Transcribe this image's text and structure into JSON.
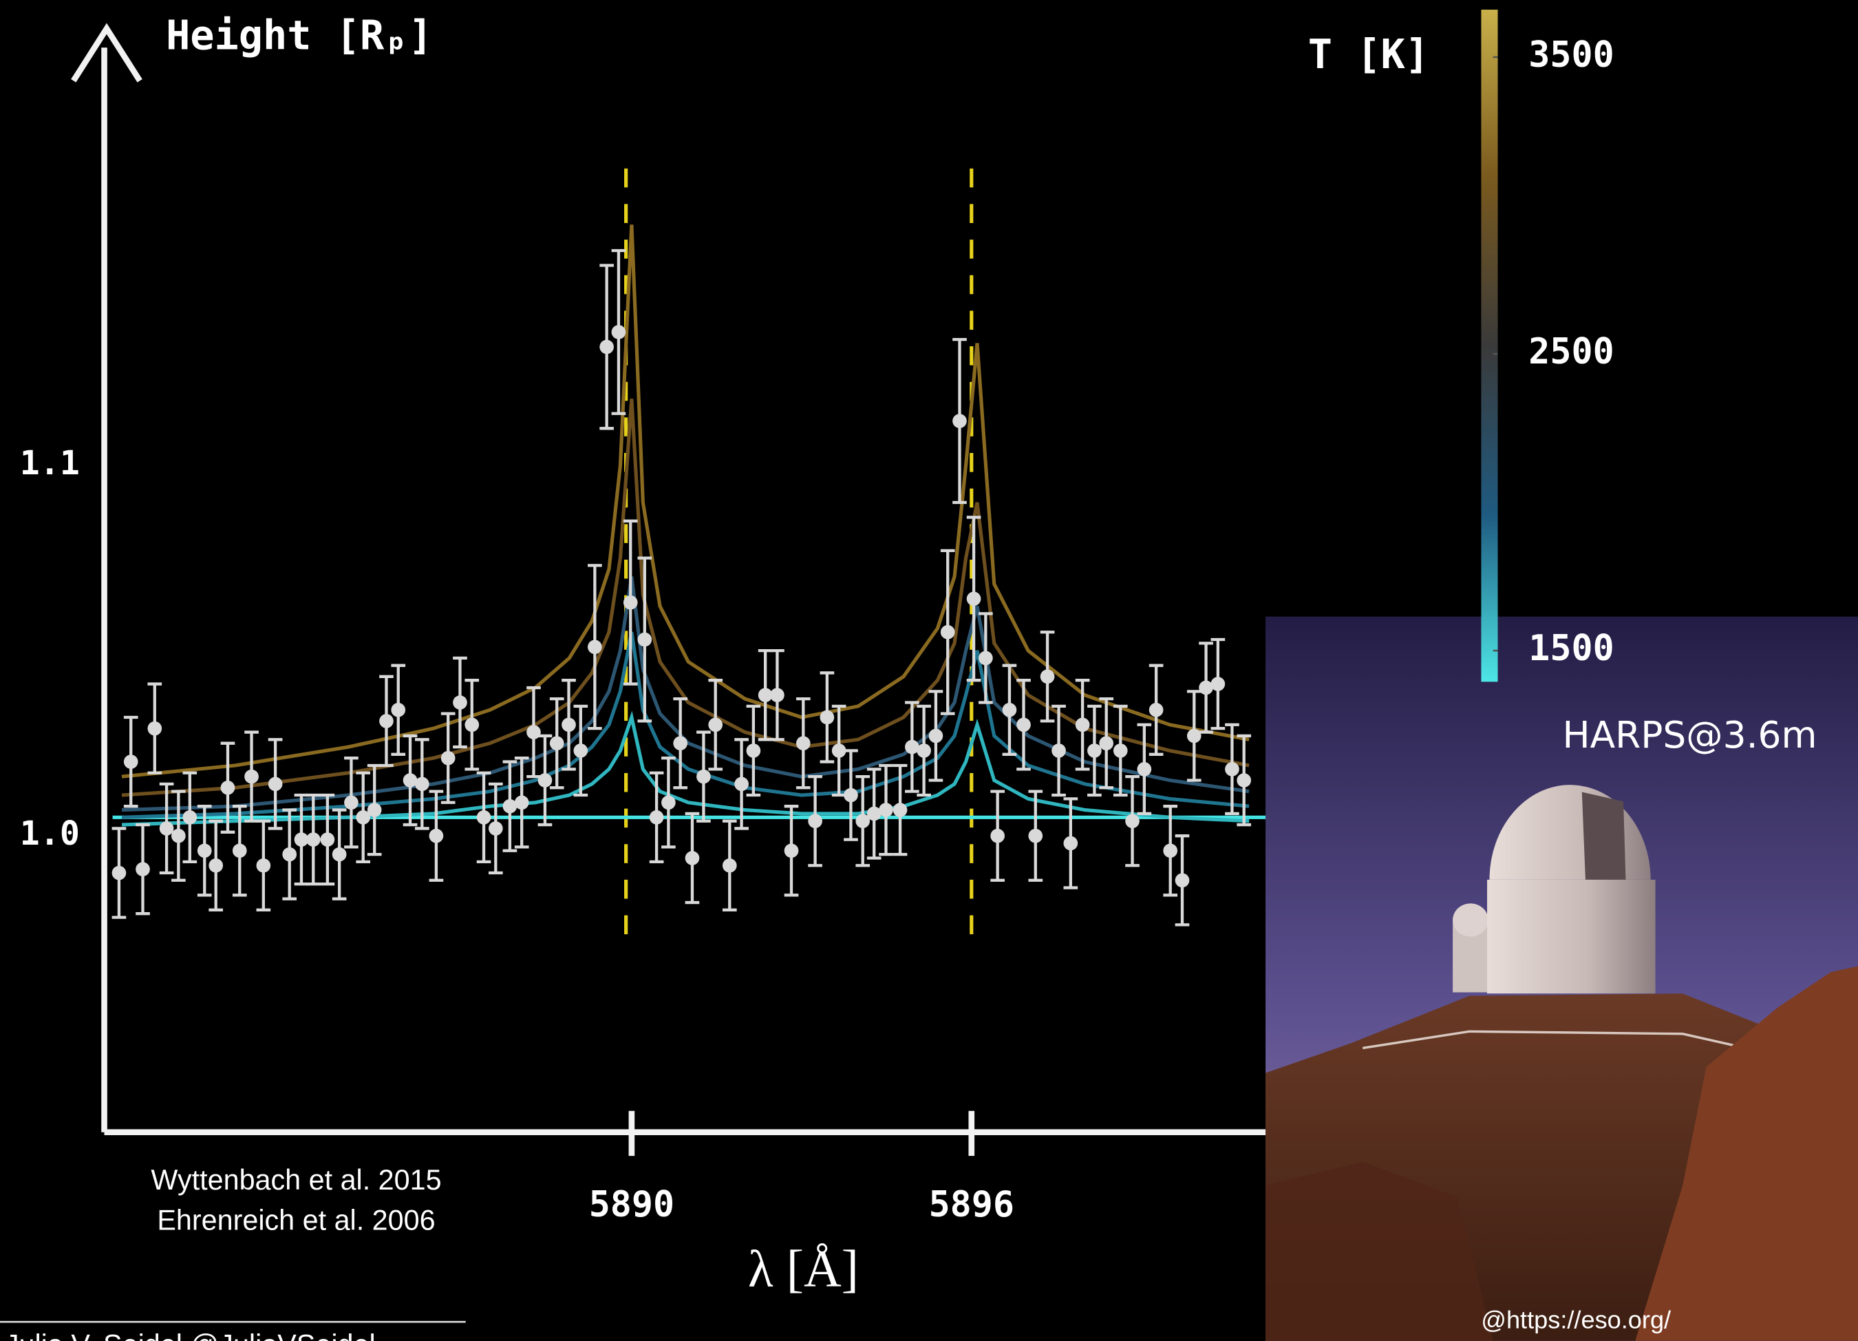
{
  "chart_data": {
    "type": "scatter",
    "y_label": "Height [Rₚ]",
    "x_label": "λ [Å]",
    "xlim": [
      5880.69,
      5901.86
    ],
    "ylim": [
      0.92,
      1.216
    ],
    "xticks": [
      5890,
      5896
    ],
    "yticks": [
      {
        "value": 1,
        "label": "1.0"
      },
      1.1
    ],
    "points": {
      "color": "#d9d9d9",
      "x": [
        5880.95,
        5881.16,
        5881.37,
        5881.58,
        5881.79,
        5882.0,
        5882.2,
        5882.46,
        5882.66,
        5882.87,
        5883.08,
        5883.29,
        5883.5,
        5883.71,
        5883.96,
        5884.17,
        5884.38,
        5884.63,
        5884.84,
        5885.05,
        5885.26,
        5885.46,
        5885.67,
        5885.88,
        5886.09,
        5886.3,
        5886.55,
        5886.76,
        5886.97,
        5887.18,
        5887.39,
        5887.6,
        5887.85,
        5888.06,
        5888.27,
        5888.47,
        5888.68,
        5888.89,
        5889.1,
        5889.35,
        5889.56,
        5889.77,
        5889.98,
        5890.23,
        5890.44,
        5890.65,
        5890.86,
        5891.07,
        5891.27,
        5891.48,
        5891.73,
        5891.94,
        5892.15,
        5892.36,
        5892.57,
        5892.82,
        5893.03,
        5893.24,
        5893.45,
        5893.66,
        5893.87,
        5894.08,
        5894.28,
        5894.49,
        5894.74,
        5894.95,
        5895.16,
        5895.37,
        5895.58,
        5895.79,
        5896.04,
        5896.25,
        5896.46,
        5896.67,
        5896.92,
        5897.13,
        5897.34,
        5897.54,
        5897.75,
        5897.96,
        5898.17,
        5898.38,
        5898.63,
        5898.84,
        5899.05,
        5899.26,
        5899.51,
        5899.72,
        5899.93,
        5900.14,
        5900.35,
        5900.6,
        5900.81
      ],
      "values": [
        0.99,
        1.02,
        0.991,
        1.029,
        1.002,
        1.0,
        1.005,
        0.996,
        0.992,
        1.013,
        0.996,
        1.016,
        0.992,
        1.014,
        0.995,
        0.999,
        0.999,
        0.999,
        0.995,
        1.009,
        1.005,
        1.007,
        1.031,
        1.034,
        1.015,
        1.014,
        1.0,
        1.021,
        1.036,
        1.03,
        1.005,
        1.002,
        1.008,
        1.009,
        1.028,
        1.015,
        1.025,
        1.03,
        1.023,
        1.051,
        1.132,
        1.136,
        1.063,
        1.053,
        1.005,
        1.009,
        1.025,
        0.994,
        1.016,
        1.03,
        0.992,
        1.014,
        1.023,
        1.038,
        1.038,
        0.996,
        1.025,
        1.004,
        1.032,
        1.023,
        1.011,
        1.004,
        1.006,
        1.007,
        1.007,
        1.024,
        1.023,
        1.027,
        1.055,
        1.112,
        1.064,
        1.048,
        1.0,
        1.034,
        1.03,
        1.0,
        1.043,
        1.023,
        0.998,
        1.03,
        1.023,
        1.025,
        1.023,
        1.004,
        1.018,
        1.034,
        0.996,
        0.988,
        1.027,
        1.04,
        1.041,
        1.018,
        1.015
      ],
      "errors": [
        0.012,
        0.012,
        0.012,
        0.012,
        0.012,
        0.012,
        0.012,
        0.012,
        0.012,
        0.012,
        0.012,
        0.012,
        0.012,
        0.012,
        0.012,
        0.012,
        0.012,
        0.012,
        0.012,
        0.012,
        0.012,
        0.012,
        0.012,
        0.012,
        0.012,
        0.012,
        0.012,
        0.012,
        0.012,
        0.012,
        0.012,
        0.012,
        0.012,
        0.012,
        0.012,
        0.012,
        0.012,
        0.012,
        0.012,
        0.022,
        0.022,
        0.022,
        0.022,
        0.022,
        0.012,
        0.012,
        0.012,
        0.012,
        0.012,
        0.012,
        0.012,
        0.012,
        0.012,
        0.012,
        0.012,
        0.012,
        0.012,
        0.012,
        0.012,
        0.012,
        0.012,
        0.012,
        0.012,
        0.012,
        0.012,
        0.012,
        0.012,
        0.012,
        0.022,
        0.022,
        0.022,
        0.012,
        0.012,
        0.012,
        0.012,
        0.012,
        0.012,
        0.012,
        0.012,
        0.012,
        0.012,
        0.012,
        0.012,
        0.012,
        0.012,
        0.012,
        0.012,
        0.012,
        0.012,
        0.012,
        0.012,
        0.012,
        0.012
      ]
    },
    "models": {
      "x": [
        5881,
        5883,
        5885,
        5886.5,
        5887.5,
        5888.3,
        5888.9,
        5889.3,
        5889.6,
        5889.8,
        5890.0,
        5890.2,
        5890.5,
        5891,
        5892,
        5893,
        5894,
        5894.8,
        5895.4,
        5895.7,
        5895.9,
        5896.1,
        5896.4,
        5897,
        5898,
        5899.5,
        5900.9
      ],
      "series": [
        {
          "color": "#8a6a20",
          "values": [
            1.016,
            1.019,
            1.024,
            1.029,
            1.034,
            1.04,
            1.048,
            1.058,
            1.072,
            1.1,
            1.165,
            1.09,
            1.062,
            1.047,
            1.037,
            1.032,
            1.035,
            1.043,
            1.056,
            1.07,
            1.1,
            1.133,
            1.068,
            1.05,
            1.038,
            1.03,
            1.026
          ]
        },
        {
          "color": "#6e4f1e",
          "values": [
            1.011,
            1.013,
            1.017,
            1.021,
            1.025,
            1.03,
            1.036,
            1.044,
            1.055,
            1.075,
            1.118,
            1.065,
            1.047,
            1.036,
            1.028,
            1.024,
            1.026,
            1.032,
            1.042,
            1.052,
            1.075,
            1.09,
            1.052,
            1.038,
            1.029,
            1.023,
            1.019
          ]
        },
        {
          "color": "#2c5672",
          "values": [
            1.007,
            1.008,
            1.011,
            1.014,
            1.017,
            1.021,
            1.025,
            1.031,
            1.039,
            1.05,
            1.07,
            1.045,
            1.033,
            1.025,
            1.019,
            1.016,
            1.018,
            1.022,
            1.029,
            1.036,
            1.05,
            1.062,
            1.036,
            1.027,
            1.02,
            1.015,
            1.012
          ]
        },
        {
          "color": "#1f7590",
          "values": [
            1.005,
            1.006,
            1.008,
            1.01,
            1.012,
            1.015,
            1.019,
            1.024,
            1.03,
            1.039,
            1.055,
            1.034,
            1.024,
            1.018,
            1.013,
            1.011,
            1.012,
            1.016,
            1.021,
            1.027,
            1.038,
            1.05,
            1.027,
            1.019,
            1.014,
            1.01,
            1.008
          ]
        },
        {
          "color": "#2fb6bf",
          "values": [
            1.003,
            1.004,
            1.005,
            1.006,
            1.008,
            1.009,
            1.011,
            1.014,
            1.018,
            1.023,
            1.032,
            1.018,
            1.012,
            1.009,
            1.007,
            1.006,
            1.006,
            1.008,
            1.011,
            1.014,
            1.02,
            1.03,
            1.015,
            1.01,
            1.007,
            1.005,
            1.004
          ]
        }
      ]
    },
    "baseline": {
      "color": "#45e3e3",
      "value": 1.005
    },
    "reference_lines": {
      "color": "#e6d21a",
      "x": [
        5889.9,
        5896
      ]
    },
    "colorbar": {
      "label": "T [K]",
      "colors": [
        "#4de6e6",
        "#1f5a80",
        "#3a3a3a",
        "#7a5a1e",
        "#c9b04a"
      ],
      "lim": [
        1395,
        3660
      ],
      "ticks": [
        1500,
        2500,
        3500
      ]
    }
  },
  "references": [
    "Wyttenbach et al. 2015",
    "Ehrenreich et al. 2006"
  ],
  "photo": {
    "label": "HARPS@3.6m",
    "credit": "@https://eso.org/"
  },
  "footer": "Julia V. Seidel @JuliaVSeidel"
}
